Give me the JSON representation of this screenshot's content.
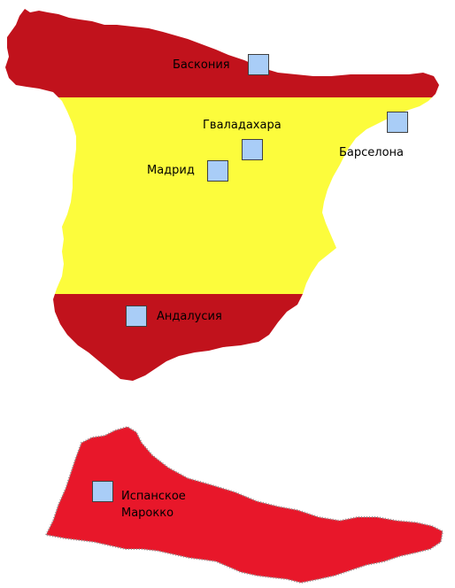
{
  "colors": {
    "red": "#c1121c",
    "yellow": "#fcfc3c",
    "morocco_red": "#e8172a",
    "morocco_border": "#8c8c8c",
    "marker_fill": "#a9cdf7",
    "marker_border": "#404040"
  },
  "regions": {
    "spain": {
      "stripes": [
        "red",
        "yellow",
        "red"
      ]
    },
    "morocco": {
      "label_line1": "Испанское",
      "label_line2": "Марокко"
    }
  },
  "markers": [
    {
      "id": "basque",
      "label": "Баскония"
    },
    {
      "id": "guadalajara",
      "label": "Гваладахара"
    },
    {
      "id": "barcelona",
      "label": "Барселона"
    },
    {
      "id": "madrid",
      "label": "Мадрид"
    },
    {
      "id": "andalusia",
      "label": "Андалусия"
    }
  ]
}
